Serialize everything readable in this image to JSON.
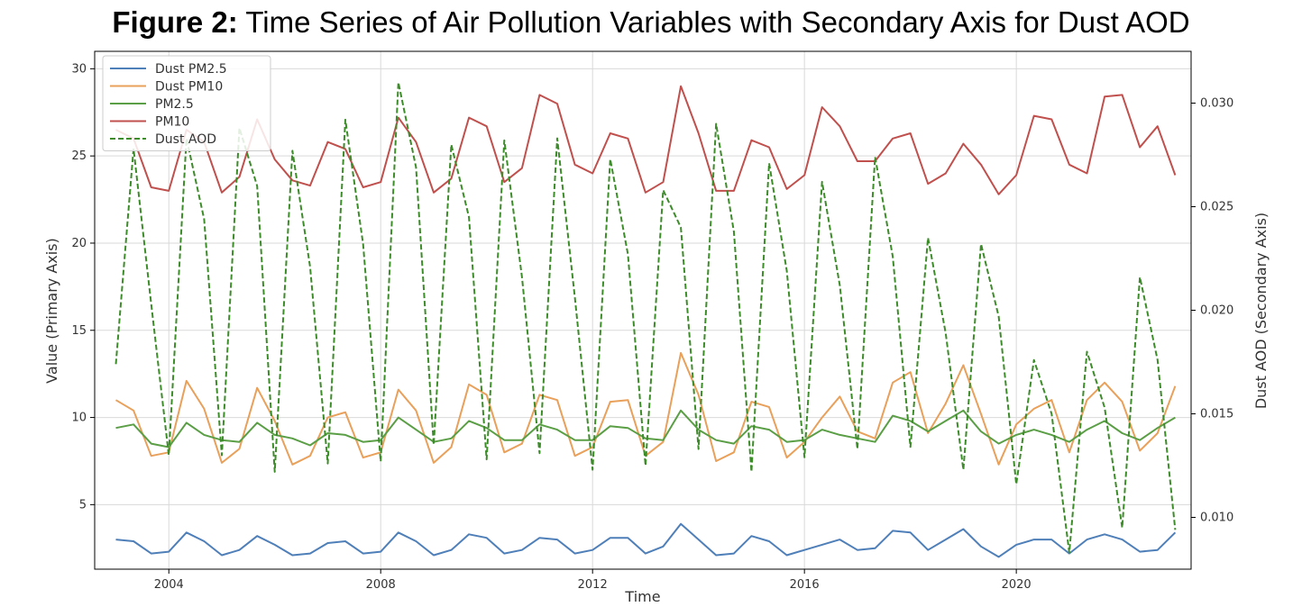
{
  "figure": {
    "label": "Figure 2:",
    "title": "Time Series of Air Pollution Variables with Secondary Axis for Dust AOD"
  },
  "chart_data": {
    "type": "line",
    "xlabel": "Time",
    "ylabel": "Value (Primary Axis)",
    "y2label": "Dust AOD (Secondary Axis)",
    "xlim": [
      2002.6,
      2023.3
    ],
    "ylim": [
      1.3,
      31.0
    ],
    "y2lim": [
      0.0075,
      0.0325
    ],
    "xticks": [
      2004,
      2008,
      2012,
      2016,
      2020
    ],
    "yticks": [
      5,
      10,
      15,
      20,
      25,
      30
    ],
    "y2ticks": [
      0.01,
      0.015,
      0.02,
      0.025,
      0.03
    ],
    "grid": true,
    "legend_position": "top-left",
    "legend": [
      "Dust PM2.5",
      "Dust PM10",
      "PM2.5",
      "PM10",
      "Dust AOD"
    ],
    "x": [
      2003.0,
      2003.333,
      2003.667,
      2004.0,
      2004.333,
      2004.667,
      2005.0,
      2005.333,
      2005.667,
      2006.0,
      2006.333,
      2006.667,
      2007.0,
      2007.333,
      2007.667,
      2008.0,
      2008.333,
      2008.667,
      2009.0,
      2009.333,
      2009.667,
      2010.0,
      2010.333,
      2010.667,
      2011.0,
      2011.333,
      2011.667,
      2012.0,
      2012.333,
      2012.667,
      2013.0,
      2013.333,
      2013.667,
      2014.0,
      2014.333,
      2014.667,
      2015.0,
      2015.333,
      2015.667,
      2016.0,
      2016.333,
      2016.667,
      2017.0,
      2017.333,
      2017.667,
      2018.0,
      2018.333,
      2018.667,
      2019.0,
      2019.333,
      2019.667,
      2020.0,
      2020.333,
      2020.667,
      2021.0,
      2021.333,
      2021.667,
      2022.0,
      2022.333,
      2022.667,
      2023.0
    ],
    "series": [
      {
        "name": "Dust PM2.5",
        "color": "#4f7fb8",
        "axis": "primary",
        "dash": "solid",
        "values": [
          3.0,
          2.9,
          2.2,
          2.3,
          3.4,
          2.9,
          2.1,
          2.4,
          3.2,
          2.7,
          2.1,
          2.2,
          2.8,
          2.9,
          2.2,
          2.3,
          3.4,
          2.9,
          2.1,
          2.4,
          3.3,
          3.1,
          2.2,
          2.4,
          3.1,
          3.0,
          2.2,
          2.4,
          3.1,
          3.1,
          2.2,
          2.6,
          3.9,
          3.0,
          2.1,
          2.2,
          3.2,
          2.9,
          2.1,
          2.4,
          2.7,
          3.0,
          2.4,
          2.5,
          3.5,
          3.4,
          2.4,
          3.0,
          3.6,
          2.6,
          2.0,
          2.7,
          3.0,
          3.0,
          2.2,
          3.0,
          3.3,
          3.0,
          2.3,
          2.4,
          3.4
        ]
      },
      {
        "name": "Dust PM10",
        "color": "#e8a05a",
        "axis": "primary",
        "dash": "solid",
        "values": [
          11.0,
          10.4,
          7.8,
          8.0,
          12.1,
          10.5,
          7.4,
          8.2,
          11.7,
          9.8,
          7.3,
          7.8,
          10.0,
          10.3,
          7.7,
          8.0,
          11.6,
          10.4,
          7.4,
          8.3,
          11.9,
          11.3,
          8.0,
          8.5,
          11.3,
          11.0,
          7.8,
          8.3,
          10.9,
          11.0,
          7.8,
          8.6,
          13.7,
          11.3,
          7.5,
          8.0,
          10.9,
          10.6,
          7.7,
          8.6,
          10.0,
          11.2,
          9.2,
          8.8,
          12.0,
          12.6,
          9.1,
          10.8,
          13.0,
          10.2,
          7.3,
          9.6,
          10.5,
          11.0,
          8.0,
          11.0,
          12.0,
          10.9,
          8.1,
          9.1,
          11.8
        ]
      },
      {
        "name": "PM2.5",
        "color": "#5a9e45",
        "axis": "primary",
        "dash": "solid",
        "values": [
          9.4,
          9.6,
          8.5,
          8.3,
          9.7,
          9.0,
          8.7,
          8.6,
          9.7,
          9.0,
          8.8,
          8.4,
          9.1,
          9.0,
          8.6,
          8.7,
          10.0,
          9.3,
          8.6,
          8.8,
          9.8,
          9.4,
          8.7,
          8.7,
          9.6,
          9.3,
          8.7,
          8.7,
          9.5,
          9.4,
          8.8,
          8.7,
          10.4,
          9.3,
          8.7,
          8.5,
          9.5,
          9.3,
          8.6,
          8.7,
          9.3,
          9.0,
          8.8,
          8.6,
          10.1,
          9.8,
          9.2,
          9.8,
          10.4,
          9.2,
          8.5,
          9.0,
          9.3,
          9.0,
          8.6,
          9.3,
          9.8,
          9.1,
          8.7,
          9.4,
          10.0
        ]
      },
      {
        "name": "PM10",
        "color": "#c0504d",
        "axis": "primary",
        "dash": "solid",
        "values": [
          26.5,
          26.0,
          23.2,
          23.0,
          26.5,
          25.8,
          22.9,
          23.8,
          27.1,
          24.8,
          23.6,
          23.3,
          25.8,
          25.4,
          23.2,
          23.5,
          27.2,
          25.8,
          22.9,
          23.7,
          27.2,
          26.7,
          23.5,
          24.3,
          28.5,
          28.0,
          24.5,
          24.0,
          26.3,
          26.0,
          22.9,
          23.5,
          29.0,
          26.3,
          23.0,
          23.0,
          25.9,
          25.5,
          23.1,
          23.9,
          27.8,
          26.7,
          24.7,
          24.7,
          26.0,
          26.3,
          23.4,
          24.0,
          25.7,
          24.5,
          22.8,
          23.9,
          27.3,
          27.1,
          24.5,
          24.0,
          28.4,
          28.5,
          25.5,
          26.7,
          23.9
        ]
      },
      {
        "name": "Dust AOD",
        "color": "#3d8c2a",
        "axis": "secondary",
        "dash": "dashed",
        "values": [
          0.0174,
          0.0278,
          0.0203,
          0.013,
          0.0283,
          0.0244,
          0.013,
          0.0288,
          0.026,
          0.0122,
          0.0277,
          0.0221,
          0.0126,
          0.0292,
          0.0232,
          0.0127,
          0.031,
          0.0269,
          0.0135,
          0.028,
          0.0245,
          0.0128,
          0.0282,
          0.0216,
          0.0131,
          0.0283,
          0.0206,
          0.0123,
          0.0273,
          0.0227,
          0.0125,
          0.0258,
          0.024,
          0.0133,
          0.029,
          0.0238,
          0.0122,
          0.0271,
          0.0219,
          0.0129,
          0.0262,
          0.0212,
          0.0133,
          0.0274,
          0.0226,
          0.0134,
          0.0235,
          0.0189,
          0.0123,
          0.0232,
          0.0197,
          0.0116,
          0.0176,
          0.015,
          0.0083,
          0.018,
          0.0153,
          0.0095,
          0.0216,
          0.0176,
          0.0094
        ]
      }
    ]
  }
}
